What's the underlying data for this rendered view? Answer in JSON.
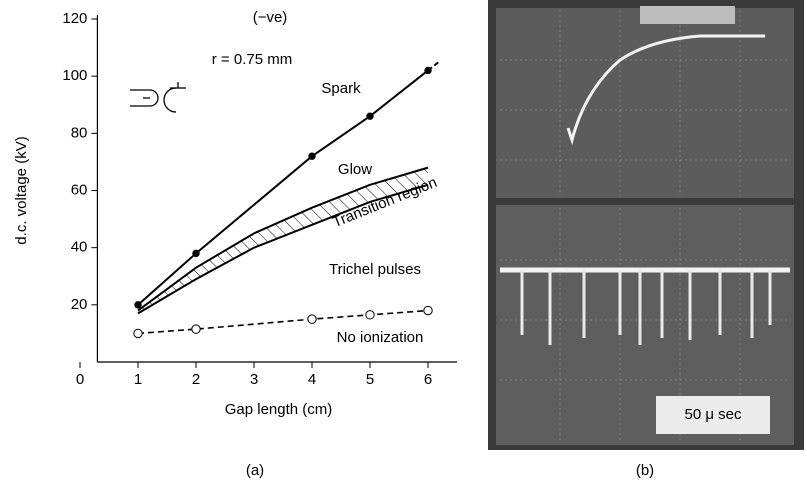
{
  "chart_data": {
    "type": "line",
    "xlabel": "Gap length (cm)",
    "ylabel": "d.c. voltage (kV)",
    "xlim": [
      0,
      6.5
    ],
    "ylim": [
      0,
      120
    ],
    "xticks": [
      0,
      1,
      2,
      3,
      4,
      5,
      6
    ],
    "yticks": [
      20,
      40,
      60,
      80,
      100,
      120
    ],
    "color": "#000000",
    "series": [
      {
        "x": [
          1,
          2,
          4,
          5,
          6
        ],
        "values": [
          20,
          38,
          72,
          86,
          102
        ],
        "marker": "filled",
        "dashed": false
      },
      {
        "x": [
          1,
          2,
          3,
          4,
          5,
          6
        ],
        "values": [
          18,
          33,
          45,
          54,
          62,
          68
        ],
        "marker": "none",
        "dashed": false,
        "band": "upper"
      },
      {
        "x": [
          1,
          2,
          3,
          4,
          5,
          6
        ],
        "values": [
          17,
          29,
          40,
          48,
          56,
          62
        ],
        "marker": "none",
        "dashed": false,
        "band": "lower"
      },
      {
        "x": [
          1,
          2,
          4,
          5,
          6
        ],
        "values": [
          10,
          11.5,
          15,
          16.5,
          18
        ],
        "marker": "open",
        "dashed": true
      }
    ],
    "annotations": [
      "(−ve)",
      "r = 0.75 mm",
      "Spark",
      "Glow",
      "Transition region",
      "Trichel pulses",
      "No ionization"
    ],
    "panel_labels": [
      "(a)",
      "(b)"
    ],
    "scale_label": "50 μ sec"
  }
}
